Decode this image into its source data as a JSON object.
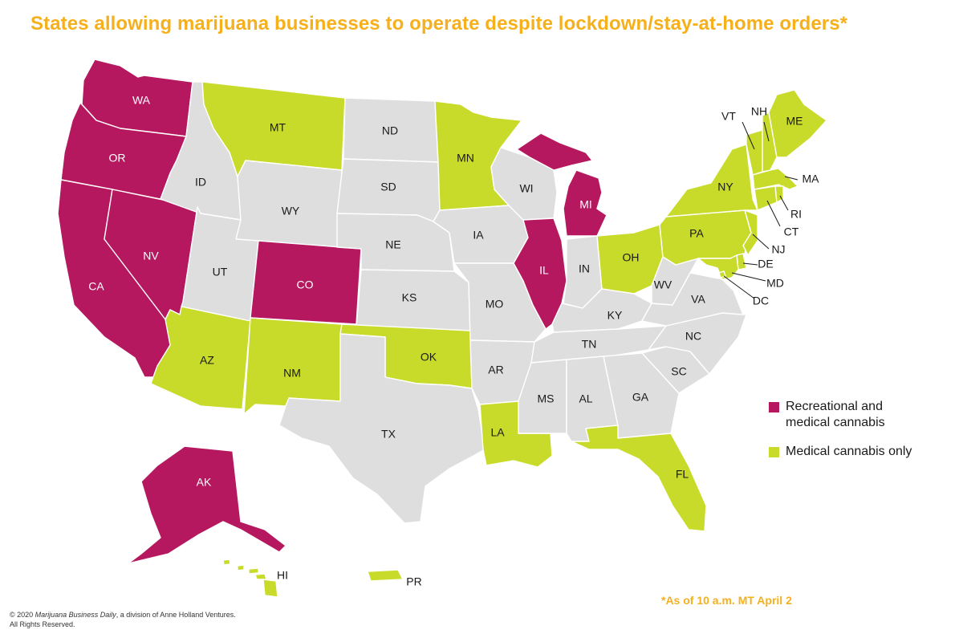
{
  "title": "States allowing marijuana businesses to operate despite lockdown/stay-at-home orders*",
  "colors": {
    "recreational": "#b5185f",
    "medical": "#c8db2a",
    "none": "#dedede",
    "accent": "#f5b01b"
  },
  "legend": [
    {
      "category": "recreational",
      "label_line1": "Recreational and",
      "label_line2": "medical cannabis"
    },
    {
      "category": "medical",
      "label_line1": "Medical cannabis only",
      "label_line2": ""
    }
  ],
  "states": [
    {
      "code": "WA",
      "category": "recreational"
    },
    {
      "code": "OR",
      "category": "recreational"
    },
    {
      "code": "CA",
      "category": "recreational"
    },
    {
      "code": "NV",
      "category": "recreational"
    },
    {
      "code": "CO",
      "category": "recreational"
    },
    {
      "code": "IL",
      "category": "recreational"
    },
    {
      "code": "MI",
      "category": "recreational"
    },
    {
      "code": "AK",
      "category": "recreational"
    },
    {
      "code": "MT",
      "category": "medical"
    },
    {
      "code": "MN",
      "category": "medical"
    },
    {
      "code": "AZ",
      "category": "medical"
    },
    {
      "code": "NM",
      "category": "medical"
    },
    {
      "code": "OK",
      "category": "medical"
    },
    {
      "code": "LA",
      "category": "medical"
    },
    {
      "code": "FL",
      "category": "medical"
    },
    {
      "code": "OH",
      "category": "medical"
    },
    {
      "code": "PA",
      "category": "medical"
    },
    {
      "code": "NY",
      "category": "medical"
    },
    {
      "code": "VT",
      "category": "medical"
    },
    {
      "code": "NH",
      "category": "medical"
    },
    {
      "code": "ME",
      "category": "medical"
    },
    {
      "code": "MA",
      "category": "medical"
    },
    {
      "code": "RI",
      "category": "medical"
    },
    {
      "code": "CT",
      "category": "medical"
    },
    {
      "code": "NJ",
      "category": "medical"
    },
    {
      "code": "DE",
      "category": "medical"
    },
    {
      "code": "MD",
      "category": "medical"
    },
    {
      "code": "DC",
      "category": "medical"
    },
    {
      "code": "HI",
      "category": "medical"
    },
    {
      "code": "PR",
      "category": "medical"
    },
    {
      "code": "ID",
      "category": "none"
    },
    {
      "code": "WY",
      "category": "none"
    },
    {
      "code": "UT",
      "category": "none"
    },
    {
      "code": "ND",
      "category": "none"
    },
    {
      "code": "SD",
      "category": "none"
    },
    {
      "code": "NE",
      "category": "none"
    },
    {
      "code": "KS",
      "category": "none"
    },
    {
      "code": "TX",
      "category": "none"
    },
    {
      "code": "IA",
      "category": "none"
    },
    {
      "code": "MO",
      "category": "none"
    },
    {
      "code": "AR",
      "category": "none"
    },
    {
      "code": "WI",
      "category": "none"
    },
    {
      "code": "IN",
      "category": "none"
    },
    {
      "code": "KY",
      "category": "none"
    },
    {
      "code": "TN",
      "category": "none"
    },
    {
      "code": "MS",
      "category": "none"
    },
    {
      "code": "AL",
      "category": "none"
    },
    {
      "code": "GA",
      "category": "none"
    },
    {
      "code": "SC",
      "category": "none"
    },
    {
      "code": "NC",
      "category": "none"
    },
    {
      "code": "VA",
      "category": "none"
    },
    {
      "code": "WV",
      "category": "none"
    }
  ],
  "footnote": "*As of 10 a.m. MT April 2",
  "copyright": {
    "prefix": "© 2020 ",
    "publication": "Marijuana Business Daily",
    "suffix": ", a division of Anne Holland Ventures.",
    "line2": "All Rights Reserved."
  }
}
